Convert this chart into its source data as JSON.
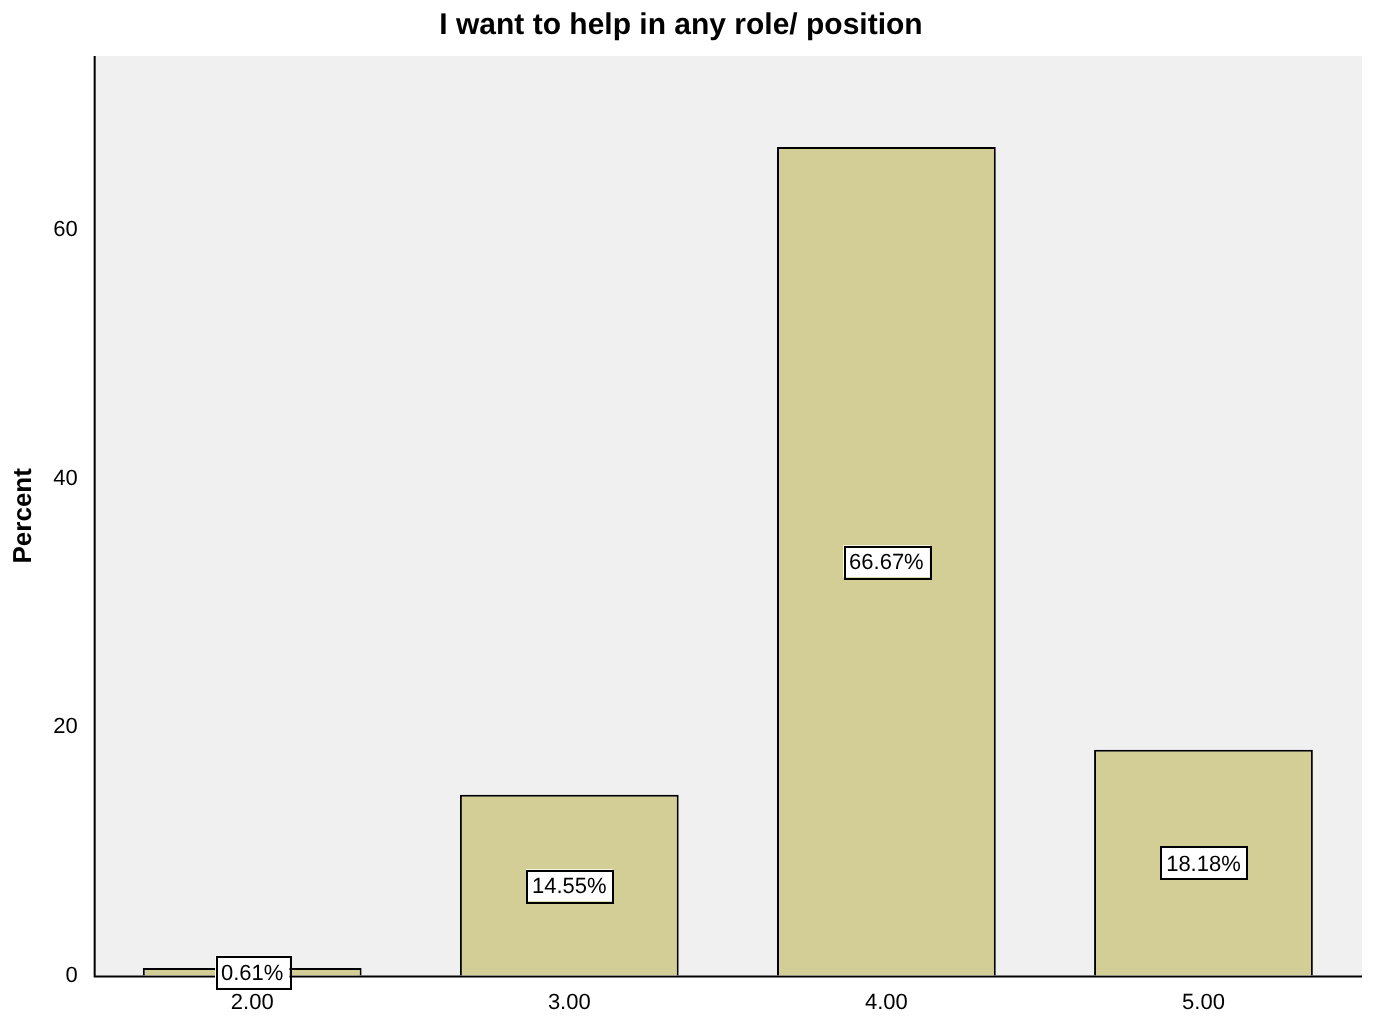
{
  "chart_data": {
    "type": "bar",
    "title": "I want to help in any role/ position",
    "ylabel": "Percent",
    "categories": [
      "2.00",
      "3.00",
      "4.00",
      "5.00"
    ],
    "values": [
      0.61,
      14.55,
      66.67,
      18.18
    ],
    "value_labels": [
      "0.61%",
      "14.55%",
      "66.67%",
      "18.18%"
    ],
    "color": "#d3ce96",
    "ylim": [
      0,
      74
    ],
    "yticks": [
      0,
      20,
      40,
      60
    ],
    "grid": false,
    "legend": false
  }
}
